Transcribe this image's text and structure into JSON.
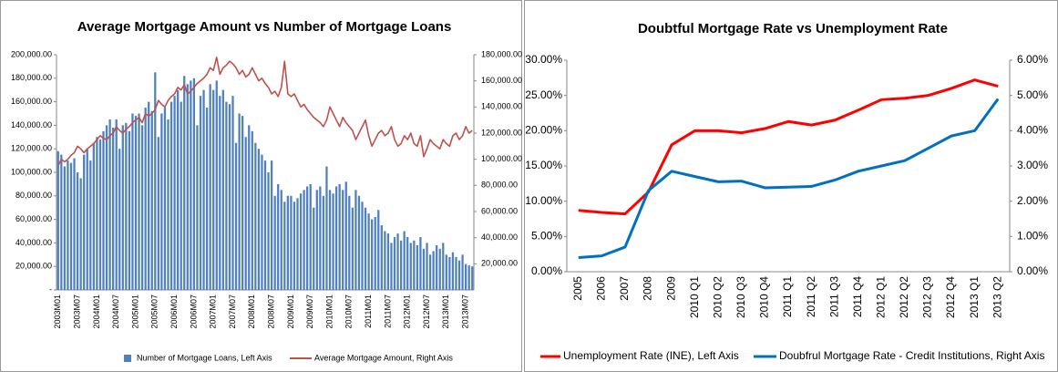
{
  "chart_data": [
    {
      "type": "bar",
      "title": "Average Mortgage Amount vs Number of Mortgage Loans",
      "categories": [
        "2003M01",
        null,
        null,
        null,
        null,
        null,
        "2003M07",
        null,
        null,
        null,
        null,
        null,
        "2004M01",
        null,
        null,
        null,
        null,
        null,
        "2004M07",
        null,
        null,
        null,
        null,
        null,
        "2005M01",
        null,
        null,
        null,
        null,
        null,
        "2005M07",
        null,
        null,
        null,
        null,
        null,
        "2006M01",
        null,
        null,
        null,
        null,
        null,
        "2006M07",
        null,
        null,
        null,
        null,
        null,
        "2007M01",
        null,
        null,
        null,
        null,
        null,
        "2007M07",
        null,
        null,
        null,
        null,
        null,
        "2008M01",
        null,
        null,
        null,
        null,
        null,
        "2008M07",
        null,
        null,
        null,
        null,
        null,
        "2009M01",
        null,
        null,
        null,
        null,
        null,
        "2009M07",
        null,
        null,
        null,
        null,
        null,
        "2010M01",
        null,
        null,
        null,
        null,
        null,
        "2010M07",
        null,
        null,
        null,
        null,
        null,
        "2011M01",
        null,
        null,
        null,
        null,
        null,
        "2011M07",
        null,
        null,
        null,
        null,
        null,
        "2012M01",
        null,
        null,
        null,
        null,
        null,
        "2012M07",
        null,
        null,
        null,
        null,
        null,
        "2013M01",
        null,
        null,
        null,
        null,
        null,
        "2013M07",
        null,
        null
      ],
      "series": [
        {
          "name": "Number of Mortgage Loans, Left Axis",
          "type": "bar",
          "color": "#4f81bd",
          "values": [
            118000,
            115000,
            105000,
            110000,
            108000,
            112000,
            100000,
            95000,
            115000,
            120000,
            110000,
            125000,
            130000,
            128000,
            135000,
            140000,
            145000,
            138000,
            145000,
            120000,
            140000,
            142000,
            135000,
            150000,
            148000,
            150000,
            140000,
            155000,
            160000,
            152000,
            185000,
            130000,
            150000,
            155000,
            145000,
            160000,
            165000,
            170000,
            160000,
            182000,
            175000,
            178000,
            180000,
            140000,
            165000,
            170000,
            155000,
            175000,
            170000,
            178000,
            165000,
            170000,
            160000,
            158000,
            165000,
            125000,
            150000,
            148000,
            130000,
            140000,
            135000,
            125000,
            120000,
            115000,
            110000,
            100000,
            110000,
            80000,
            90000,
            85000,
            75000,
            80000,
            80000,
            75000,
            78000,
            82000,
            85000,
            88000,
            90000,
            70000,
            85000,
            88000,
            80000,
            105000,
            85000,
            82000,
            88000,
            90000,
            85000,
            92000,
            80000,
            70000,
            85000,
            80000,
            75000,
            70000,
            65000,
            60000,
            62000,
            68000,
            55000,
            50000,
            48000,
            40000,
            45000,
            48000,
            42000,
            50000,
            45000,
            40000,
            42000,
            38000,
            45000,
            35000,
            40000,
            30000,
            33000,
            38000,
            35000,
            40000,
            30000,
            28000,
            32000,
            28000,
            25000,
            30000,
            22000,
            21000,
            20000
          ]
        },
        {
          "name": "Average Mortgage Amount, Right Axis",
          "type": "line",
          "axis": "y2",
          "color": "#c0504d",
          "values": [
            95000,
            100000,
            98000,
            100000,
            103000,
            105000,
            110000,
            108000,
            105000,
            108000,
            110000,
            112000,
            115000,
            118000,
            116000,
            115000,
            118000,
            120000,
            125000,
            122000,
            120000,
            123000,
            125000,
            128000,
            130000,
            132000,
            128000,
            135000,
            133000,
            135000,
            138000,
            145000,
            142000,
            140000,
            145000,
            148000,
            150000,
            155000,
            153000,
            157000,
            150000,
            152000,
            155000,
            158000,
            160000,
            162000,
            165000,
            170000,
            168000,
            178000,
            165000,
            170000,
            172000,
            175000,
            173000,
            170000,
            165000,
            168000,
            163000,
            165000,
            170000,
            165000,
            160000,
            162000,
            158000,
            155000,
            150000,
            152000,
            148000,
            155000,
            175000,
            150000,
            148000,
            150000,
            145000,
            140000,
            142000,
            138000,
            135000,
            132000,
            130000,
            128000,
            125000,
            130000,
            140000,
            135000,
            130000,
            125000,
            132000,
            128000,
            125000,
            122000,
            115000,
            120000,
            125000,
            130000,
            118000,
            110000,
            115000,
            120000,
            122000,
            118000,
            120000,
            125000,
            115000,
            110000,
            112000,
            118000,
            115000,
            120000,
            112000,
            110000,
            118000,
            102000,
            108000,
            115000,
            112000,
            110000,
            108000,
            115000,
            112000,
            110000,
            118000,
            120000,
            115000,
            118000,
            125000,
            120000,
            122000
          ]
        }
      ],
      "ylim": [
        0,
        200000
      ],
      "yticks": [
        {
          "value": 0,
          "label": "-"
        },
        {
          "value": 20000,
          "label": "20,000.00"
        },
        {
          "value": 40000,
          "label": "40,000.00"
        },
        {
          "value": 60000,
          "label": "60,000.00"
        },
        {
          "value": 80000,
          "label": "80,000.00"
        },
        {
          "value": 100000,
          "label": "100,000.00"
        },
        {
          "value": 120000,
          "label": "120,000.00"
        },
        {
          "value": 140000,
          "label": "140,000.00"
        },
        {
          "value": 160000,
          "label": "160,000.00"
        },
        {
          "value": 180000,
          "label": "180,000.00"
        },
        {
          "value": 200000,
          "label": "200,000.00"
        }
      ],
      "y2lim": [
        0,
        180000
      ],
      "y2ticks": [
        {
          "value": 20000,
          "label": "20,000.00"
        },
        {
          "value": 40000,
          "label": "40,000.00"
        },
        {
          "value": 60000,
          "label": "60,000.00"
        },
        {
          "value": 80000,
          "label": "80,000.00"
        },
        {
          "value": 100000,
          "label": "100,000.00"
        },
        {
          "value": 120000,
          "label": "120,000.00"
        },
        {
          "value": 140000,
          "label": "140,000.00"
        },
        {
          "value": 160000,
          "label": "160,000.00"
        },
        {
          "value": 180000,
          "label": "180,000.00"
        }
      ],
      "grid": false,
      "legend": "bottom"
    },
    {
      "type": "line",
      "title": "Doubtful Mortgage Rate vs Unemployment Rate",
      "categories": [
        "2005",
        "2006",
        "2007",
        "2008",
        "2009",
        "2010 Q1",
        "2010 Q2",
        "2010 Q3",
        "2010 Q4",
        "2011 Q1",
        "2011 Q2",
        "2011 Q3",
        "2011 Q4",
        "2012 Q1",
        "2012 Q2",
        "2012 Q3",
        "2012 Q4",
        "2013 Q1",
        "2013 Q2"
      ],
      "series": [
        {
          "name": "Unemployment Rate (INE), Left Axis",
          "color": "#ff0000",
          "values": [
            8.7,
            8.4,
            8.2,
            11.3,
            18.0,
            20.0,
            20.0,
            19.7,
            20.3,
            21.3,
            20.8,
            21.5,
            22.9,
            24.4,
            24.6,
            25.0,
            26.0,
            27.2,
            26.3
          ]
        },
        {
          "name": "Doubfrul Mortgage Rate - Credit Institutions, Right Axis",
          "axis": "y2",
          "color": "#0070c0",
          "values": [
            0.4,
            0.45,
            0.7,
            2.3,
            2.85,
            2.7,
            2.55,
            2.57,
            2.38,
            2.4,
            2.42,
            2.6,
            2.85,
            3.0,
            3.15,
            3.5,
            3.85,
            4.0,
            4.9
          ]
        }
      ],
      "ylim": [
        0,
        30
      ],
      "yticks": [
        {
          "value": 0,
          "label": "0.00%"
        },
        {
          "value": 5,
          "label": "5.00%"
        },
        {
          "value": 10,
          "label": "10.00%"
        },
        {
          "value": 15,
          "label": "15.00%"
        },
        {
          "value": 20,
          "label": "20.00%"
        },
        {
          "value": 25,
          "label": "25.00%"
        },
        {
          "value": 30,
          "label": "30.00%"
        }
      ],
      "y2lim": [
        0,
        6
      ],
      "y2ticks": [
        {
          "value": 0,
          "label": "0.00%"
        },
        {
          "value": 1,
          "label": "1.00%"
        },
        {
          "value": 2,
          "label": "2.00%"
        },
        {
          "value": 3,
          "label": "3.00%"
        },
        {
          "value": 4,
          "label": "4.00%"
        },
        {
          "value": 5,
          "label": "5.00%"
        },
        {
          "value": 6,
          "label": "6.00%"
        }
      ],
      "grid": false,
      "legend": "bottom"
    }
  ]
}
